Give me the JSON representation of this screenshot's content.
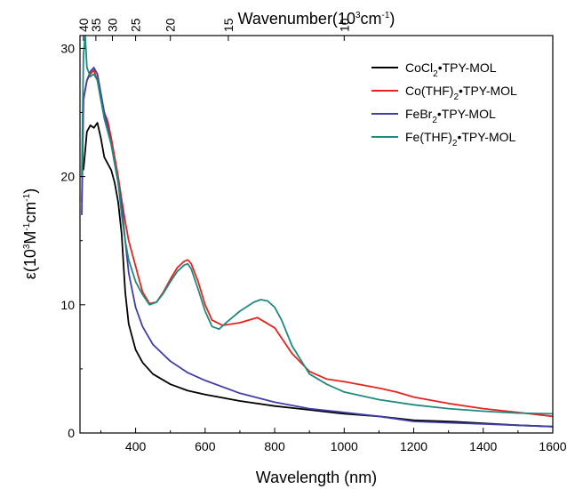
{
  "chart_data": {
    "type": "line",
    "xlabel": "Wavelength (nm)",
    "ylabel_prefix": "ε(10",
    "ylabel_sup1": "3",
    "ylabel_mid": "M",
    "ylabel_sup2": "-1",
    "ylabel_mid2": "cm",
    "ylabel_sup3": "-1",
    "ylabel_suffix": ")",
    "x2label_prefix": "Wavenumber(10",
    "x2label_sup": "3",
    "x2label_mid": "cm",
    "x2label_sup2": "-1",
    "x2label_suffix": ")",
    "xlim": [
      240,
      1600
    ],
    "ylim": [
      0,
      31
    ],
    "x_ticks": [
      {
        "v": 400,
        "label": "400"
      },
      {
        "v": 600,
        "label": "600"
      },
      {
        "v": 800,
        "label": "800"
      },
      {
        "v": 1000,
        "label": "1000"
      },
      {
        "v": 1200,
        "label": "1200"
      },
      {
        "v": 1400,
        "label": "1400"
      },
      {
        "v": 1600,
        "label": "1600"
      }
    ],
    "y_ticks": [
      {
        "v": 0,
        "label": "0"
      },
      {
        "v": 10,
        "label": "10"
      },
      {
        "v": 20,
        "label": "20"
      },
      {
        "v": 30,
        "label": "30"
      }
    ],
    "x2_ticks": [
      {
        "v": 40,
        "label": "40"
      },
      {
        "v": 35,
        "label": "35"
      },
      {
        "v": 30,
        "label": "30"
      },
      {
        "v": 25,
        "label": "25"
      },
      {
        "v": 20,
        "label": "20"
      },
      {
        "v": 15,
        "label": "15"
      },
      {
        "v": 10,
        "label": "10"
      }
    ],
    "legend_position": "top-right",
    "grid": false,
    "series": [
      {
        "name_parts": [
          "CoCl",
          "2",
          "•TPY-MOL"
        ],
        "color": "#000000",
        "x": [
          250,
          260,
          270,
          280,
          290,
          300,
          310,
          320,
          330,
          340,
          350,
          360,
          370,
          380,
          400,
          420,
          450,
          500,
          550,
          600,
          700,
          800,
          900,
          1000,
          1100,
          1200,
          1300,
          1400,
          1500,
          1600
        ],
        "y": [
          20.5,
          23.5,
          24.0,
          23.8,
          24.2,
          23.0,
          21.5,
          21.0,
          20.5,
          19.5,
          18.0,
          15.5,
          11.0,
          8.5,
          6.5,
          5.5,
          4.6,
          3.8,
          3.3,
          3.0,
          2.5,
          2.1,
          1.8,
          1.5,
          1.3,
          1.0,
          0.9,
          0.75,
          0.6,
          0.5
        ]
      },
      {
        "name_parts": [
          "Co(THF)",
          "2",
          "•TPY-MOL"
        ],
        "color": "#e8231f",
        "x": [
          245,
          250,
          260,
          270,
          280,
          290,
          300,
          310,
          320,
          330,
          340,
          350,
          360,
          370,
          380,
          400,
          420,
          440,
          460,
          480,
          500,
          520,
          540,
          550,
          560,
          580,
          600,
          620,
          650,
          700,
          750,
          800,
          850,
          900,
          950,
          1000,
          1100,
          1150,
          1200,
          1300,
          1400,
          1500,
          1600
        ],
        "y": [
          18.0,
          26.0,
          27.5,
          28.0,
          28.3,
          27.5,
          26.0,
          25.0,
          24.3,
          23.0,
          21.5,
          20.0,
          18.2,
          16.5,
          15.0,
          13.0,
          11.0,
          10.1,
          10.2,
          11.0,
          12.0,
          12.9,
          13.4,
          13.5,
          13.2,
          11.8,
          10.0,
          8.8,
          8.4,
          8.6,
          9.0,
          8.2,
          6.2,
          4.8,
          4.2,
          4.0,
          3.5,
          3.2,
          2.8,
          2.3,
          1.9,
          1.6,
          1.3
        ]
      },
      {
        "name_parts": [
          "FeBr",
          "2",
          "•TPY-MOL"
        ],
        "color": "#3f3fa6",
        "x": [
          245,
          250,
          260,
          270,
          280,
          290,
          300,
          310,
          320,
          330,
          340,
          350,
          360,
          370,
          380,
          400,
          420,
          450,
          500,
          550,
          600,
          700,
          800,
          900,
          1000,
          1100,
          1200,
          1300,
          1400,
          1500,
          1600
        ],
        "y": [
          17.0,
          26.0,
          27.5,
          28.2,
          28.5,
          28.0,
          26.5,
          25.0,
          23.8,
          22.5,
          21.0,
          19.5,
          17.8,
          15.0,
          12.5,
          9.8,
          8.3,
          6.9,
          5.6,
          4.7,
          4.1,
          3.1,
          2.4,
          1.9,
          1.6,
          1.3,
          0.9,
          0.8,
          0.7,
          0.6,
          0.5
        ]
      },
      {
        "name_parts": [
          "Fe(THF)",
          "2",
          "•TPY-MOL"
        ],
        "color": "#1f8a80",
        "x": [
          245,
          250,
          255,
          260,
          270,
          280,
          290,
          300,
          310,
          320,
          330,
          340,
          350,
          360,
          370,
          380,
          400,
          420,
          440,
          460,
          480,
          500,
          520,
          540,
          550,
          560,
          580,
          600,
          620,
          640,
          660,
          700,
          740,
          760,
          780,
          800,
          820,
          850,
          900,
          950,
          1000,
          1100,
          1200,
          1300,
          1400,
          1500,
          1600
        ],
        "y": [
          20.0,
          29.5,
          31.0,
          28.5,
          27.8,
          28.0,
          27.5,
          26.0,
          24.5,
          23.5,
          22.5,
          21.0,
          19.5,
          17.0,
          15.0,
          13.5,
          11.8,
          10.8,
          10.0,
          10.2,
          10.9,
          11.8,
          12.6,
          13.1,
          13.2,
          12.8,
          11.2,
          9.5,
          8.3,
          8.1,
          8.6,
          9.5,
          10.2,
          10.4,
          10.3,
          9.8,
          8.8,
          6.8,
          4.6,
          3.8,
          3.2,
          2.6,
          2.2,
          1.9,
          1.7,
          1.55,
          1.5
        ]
      }
    ]
  }
}
